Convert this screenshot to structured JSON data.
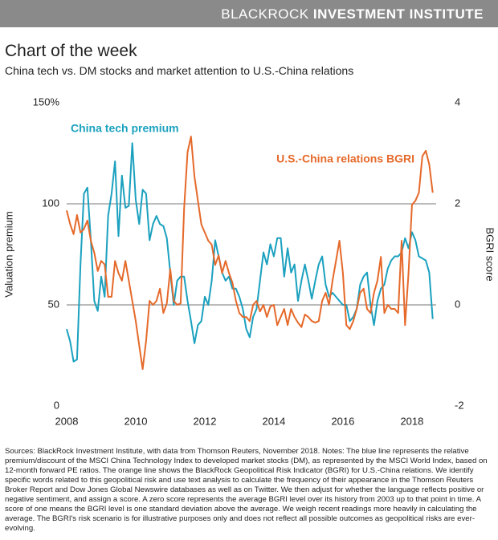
{
  "header": {
    "brand": "BLACKROCK",
    "brand_bold": "INVESTMENT INSTITUTE"
  },
  "chart_data": {
    "type": "line",
    "title": "Chart of the week",
    "subtitle": "China tech vs. DM stocks and market attention to U.S.-China relations",
    "ylabel": "Valuation premium",
    "y2label": "BGRI score",
    "x": [
      2008,
      2008.1,
      2008.2,
      2008.3,
      2008.4,
      2008.5,
      2008.6,
      2008.7,
      2008.8,
      2008.9,
      2009,
      2009.1,
      2009.2,
      2009.3,
      2009.4,
      2009.5,
      2009.6,
      2009.7,
      2009.8,
      2009.9,
      2010,
      2010.1,
      2010.2,
      2010.3,
      2010.4,
      2010.5,
      2010.6,
      2010.7,
      2010.8,
      2010.9,
      2011,
      2011.1,
      2011.2,
      2011.3,
      2011.4,
      2011.5,
      2011.6,
      2011.7,
      2011.8,
      2011.9,
      2012,
      2012.1,
      2012.2,
      2012.3,
      2012.4,
      2012.5,
      2012.6,
      2012.7,
      2012.8,
      2012.9,
      2013,
      2013.1,
      2013.2,
      2013.3,
      2013.4,
      2013.5,
      2013.6,
      2013.7,
      2013.8,
      2013.9,
      2014,
      2014.1,
      2014.2,
      2014.3,
      2014.4,
      2014.5,
      2014.6,
      2014.7,
      2014.8,
      2014.9,
      2015,
      2015.1,
      2015.2,
      2015.3,
      2015.4,
      2015.5,
      2015.6,
      2015.7,
      2015.8,
      2015.9,
      2016,
      2016.1,
      2016.2,
      2016.3,
      2016.4,
      2016.5,
      2016.6,
      2016.7,
      2016.8,
      2016.9,
      2017,
      2017.1,
      2017.2,
      2017.3,
      2017.4,
      2017.5,
      2017.6,
      2017.7,
      2017.8,
      2017.9,
      2018,
      2018.1,
      2018.2,
      2018.3,
      2018.4,
      2018.5,
      2018.6
    ],
    "series": [
      {
        "name": "China tech premium",
        "color": "#1ba1bf",
        "values": [
          38,
          32,
          22,
          23,
          70,
          105,
          108,
          82,
          52,
          47,
          64,
          54,
          94,
          105,
          121,
          84,
          114,
          98,
          99,
          130,
          102,
          90,
          107,
          105,
          82,
          90,
          94,
          90,
          89,
          83,
          66,
          50,
          62,
          64,
          64,
          52,
          42,
          31,
          40,
          42,
          54,
          50,
          62,
          82,
          74,
          66,
          62,
          64,
          58,
          58,
          54,
          48,
          38,
          34,
          44,
          48,
          62,
          76,
          70,
          80,
          74,
          83,
          83,
          64,
          78,
          66,
          70,
          52,
          62,
          70,
          62,
          53,
          62,
          70,
          74,
          60,
          54,
          56,
          54,
          52,
          50,
          50,
          42,
          44,
          48,
          60,
          64,
          66,
          50,
          40,
          52,
          58,
          60,
          68,
          72,
          74,
          74,
          76,
          83,
          78,
          86,
          82,
          74,
          73,
          72,
          66,
          43
        ]
      },
      {
        "name": "U.S.-China relations BGRI",
        "color": "#e5692a",
        "axis": "y2",
        "values": [
          1.87,
          1.6,
          1.4,
          1.78,
          1.43,
          1.5,
          1.67,
          1.27,
          1.03,
          0.67,
          0.87,
          0.8,
          0.16,
          0.16,
          0.87,
          0.63,
          0.48,
          0.87,
          0.48,
          0.08,
          -0.32,
          -0.8,
          -1.27,
          -0.71,
          0.08,
          0,
          0.08,
          0.32,
          -0.16,
          0.03,
          0.71,
          0.08,
          0,
          0.03,
          1.9,
          3.02,
          3.33,
          2.54,
          2.06,
          1.59,
          1.43,
          1.27,
          1.19,
          0.79,
          0.98,
          0.63,
          0.87,
          0.63,
          0.44,
          0.08,
          -0.16,
          -0.24,
          -0.24,
          -0.32,
          0,
          0.08,
          -0.13,
          0,
          -0.24,
          -0.03,
          0,
          -0.4,
          -0.24,
          -0.08,
          -0.4,
          -0.08,
          -0.24,
          -0.35,
          -0.44,
          -0.19,
          -0.24,
          -0.32,
          -0.35,
          -0.32,
          0.08,
          0.24,
          0,
          0.48,
          0.87,
          1.27,
          0.63,
          -0.4,
          -0.48,
          -0.32,
          -0.08,
          0.24,
          0.32,
          -0.08,
          -0.16,
          0.24,
          0.48,
          0.95,
          -0.16,
          0,
          -0.08,
          -0.08,
          -0.16,
          1.27,
          -0.4,
          0.63,
          1.98,
          2.06,
          2.22,
          2.94,
          3.05,
          2.78,
          2.22
        ]
      }
    ],
    "xlim": [
      2008,
      2018.7
    ],
    "xticks": [
      2008,
      2010,
      2012,
      2014,
      2016,
      2018
    ],
    "ylim": [
      0,
      150
    ],
    "yticks": [
      0,
      50,
      100,
      {
        "value": 150,
        "label": "150%"
      }
    ],
    "y2lim": [
      -2,
      4
    ],
    "y2ticks": [
      -2,
      0,
      2,
      4
    ],
    "grid": true
  },
  "footnote": "Sources: BlackRock Investment Institute, with data from Thomson Reuters, November 2018. Notes: The blue line represents the relative premium/discount of the MSCI China Technology Index to developed market stocks (DM), as represented by the MSCI World Index, based on 12-month forward PE ratios. The orange line shows the BlackRock Geopolitical Risk Indicator (BGRI) for U.S.-China relations. We identify specific words related to this geopolitical risk and use text analysis to calculate the frequency of their appearance in the Thomson Reuters Broker Report and Dow Jones Global Newswire databases as well as on Twitter. We then adjust for whether the language reflects positive or negative sentiment, and assign a score. A zero score represents the average BGRI level over its history from 2003 up to that point in time. A score of one means the BGRI level is one standard deviation above the average. We weigh recent readings more heavily in calculating the average. The BGRI's risk scenario is for illustrative purposes only and does not reflect all possible outcomes as geopolitical risks are ever-evolving."
}
